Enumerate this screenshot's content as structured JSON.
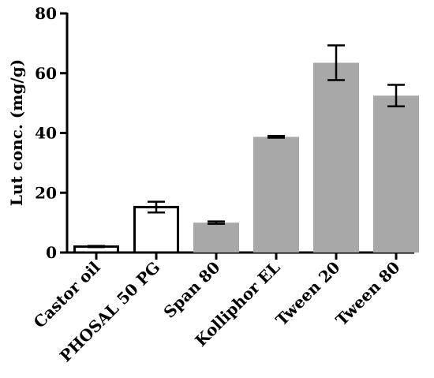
{
  "chart_data": {
    "type": "bar",
    "title": "",
    "xlabel": "",
    "ylabel": "Lut conc. (mg/g)",
    "ylim": [
      0,
      80
    ],
    "yticks": [
      0,
      20,
      40,
      60,
      80
    ],
    "grid": false,
    "legend": "none",
    "categories": [
      "Castor oil",
      "PHOSAL 50 PG",
      "Span 80",
      "Kolliphor EL",
      "Tween 20",
      "Tween 80"
    ],
    "values": [
      2.0,
      15.2,
      10.0,
      38.7,
      63.5,
      52.5
    ],
    "errors": [
      0.2,
      1.8,
      0.4,
      0.3,
      5.8,
      3.6
    ],
    "bar_fills": [
      "#ffffff",
      "#ffffff",
      "#a8a8a8",
      "#a8a8a8",
      "#a8a8a8",
      "#a8a8a8"
    ],
    "bar_strokes": [
      "#000000",
      "#000000",
      "#a8a8a8",
      "#a8a8a8",
      "#a8a8a8",
      "#a8a8a8"
    ]
  }
}
